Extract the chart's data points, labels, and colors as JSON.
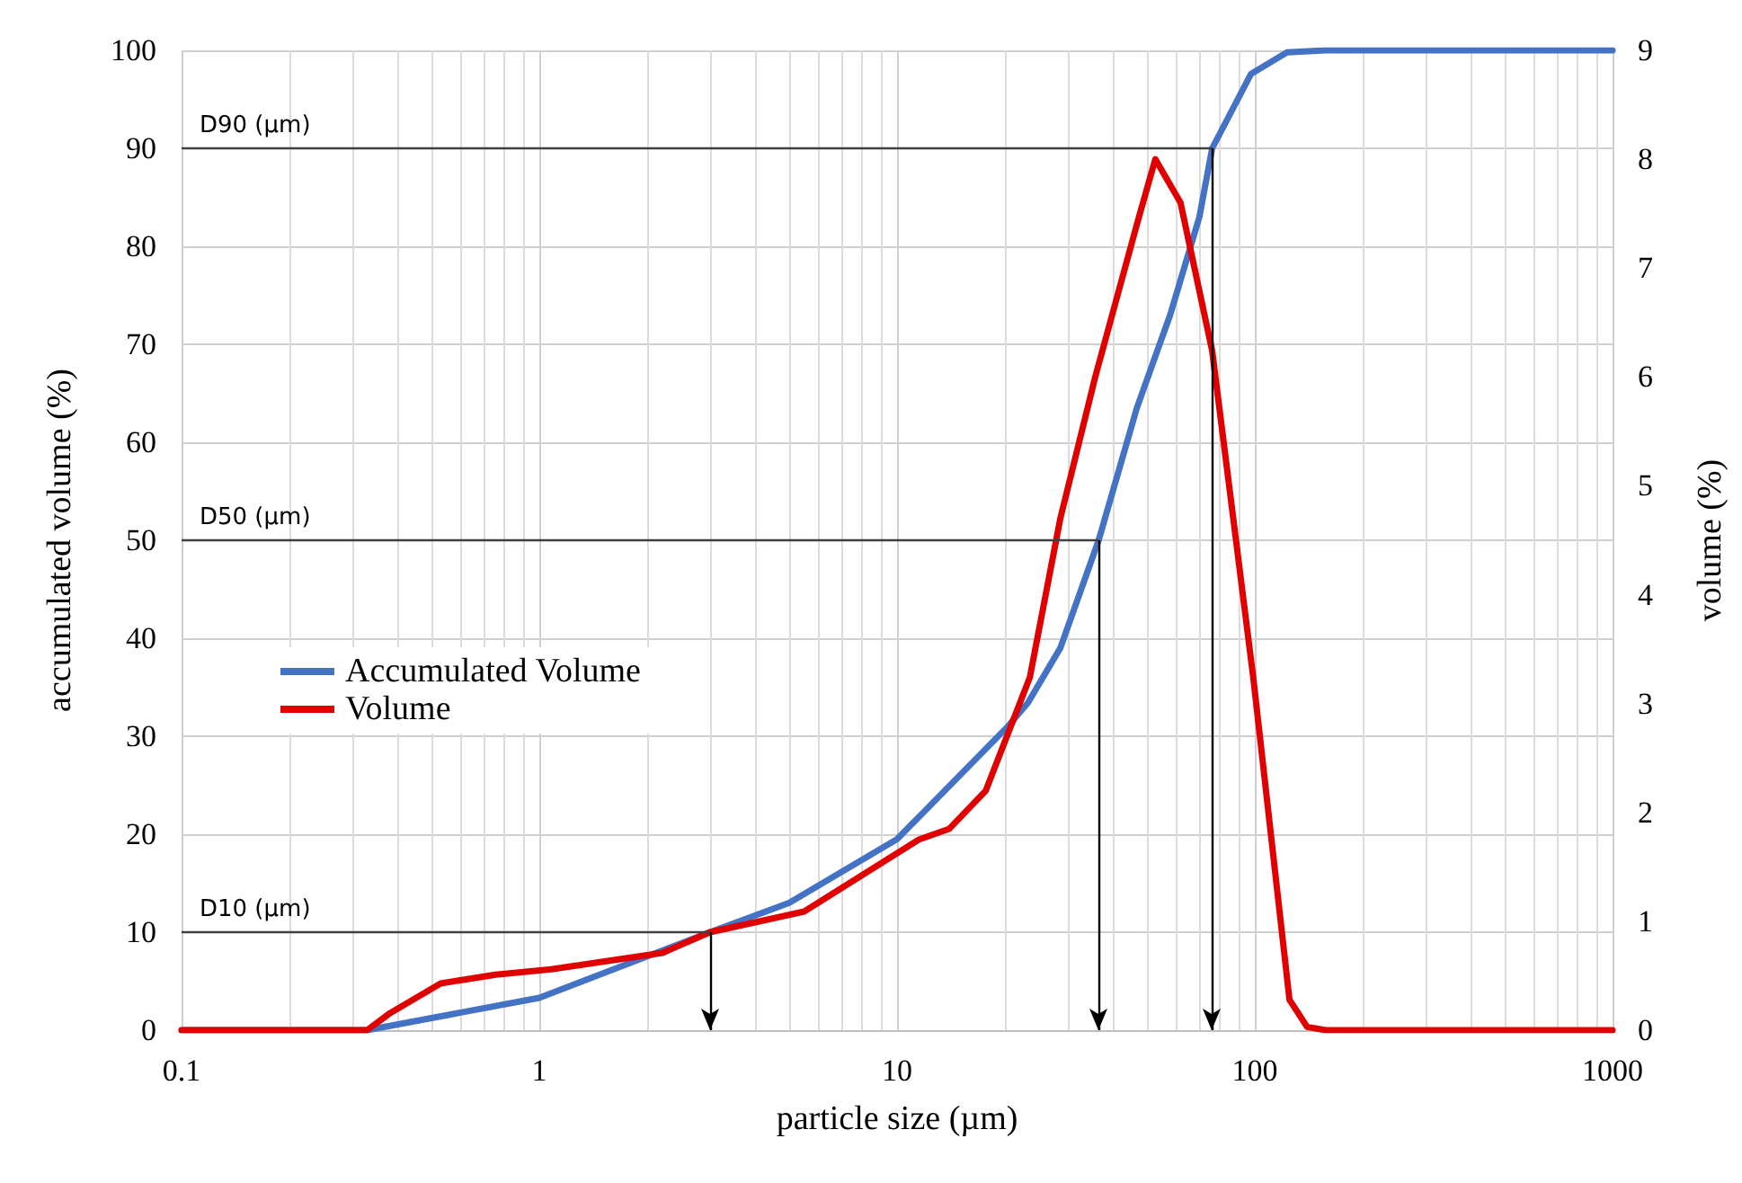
{
  "chart_data": {
    "type": "line",
    "xlabel": "particle size (µm)",
    "ylabel": "accumulated volume (%)",
    "y2label": "volume (%)",
    "log": "x",
    "xlim": [
      0.1,
      1000
    ],
    "xticks": [
      0.1,
      1,
      10,
      100,
      1000
    ],
    "ylim": [
      0,
      100
    ],
    "yticks": [
      0,
      10,
      20,
      30,
      40,
      50,
      60,
      70,
      80,
      90,
      100
    ],
    "y2lim": [
      0,
      9
    ],
    "y2ticks": [
      0,
      1,
      2,
      3,
      4,
      5,
      6,
      7,
      8,
      9
    ],
    "grid": true,
    "legend": "left",
    "marker": "none",
    "line_style": "solid",
    "series": [
      {
        "name": "Accumulated Volume",
        "color": "#4472c4",
        "x": [
          0.1,
          0.33,
          1,
          3,
          5,
          10,
          20.4,
          23.2,
          28.6,
          36.6,
          46.8,
          58,
          70,
          76,
          97.6,
          123,
          158,
          1000
        ],
        "values": [
          0,
          0,
          3.3,
          10,
          13,
          19.5,
          31,
          33.4,
          39,
          50,
          63.5,
          73,
          83,
          90,
          97.6,
          99.8,
          100,
          100
        ]
      },
      {
        "name": "Volume",
        "color": "#e00000",
        "axis": "y2",
        "x": [
          0.1,
          0.33,
          0.38,
          0.53,
          0.755,
          1.08,
          2.21,
          3,
          5.5,
          11.5,
          14,
          17.7,
          23.5,
          28.6,
          35.8,
          46.8,
          52.7,
          62,
          76,
          99,
          125,
          140,
          158,
          1000
        ],
        "values": [
          0,
          0,
          0.15,
          0.43,
          0.51,
          0.56,
          0.71,
          0.9,
          1.09,
          1.75,
          1.85,
          2.2,
          3.24,
          4.7,
          6.0,
          7.4,
          8.0,
          7.6,
          6.24,
          3.24,
          0.28,
          0.03,
          0,
          0
        ]
      }
    ],
    "ref_lines": [
      {
        "axis": "y",
        "value": 10,
        "label": "D10 (µm)",
        "color": "#404040"
      },
      {
        "axis": "y",
        "value": 50,
        "label": "D50 (µm)",
        "color": "#404040"
      },
      {
        "axis": "y",
        "value": 90,
        "label": "D90 (µm)",
        "color": "#404040"
      },
      {
        "axis": "x",
        "value": 3,
        "color": "#000000"
      },
      {
        "axis": "x",
        "value": 36.6,
        "color": "#000000"
      },
      {
        "axis": "x",
        "value": 76,
        "color": "#000000"
      }
    ]
  }
}
